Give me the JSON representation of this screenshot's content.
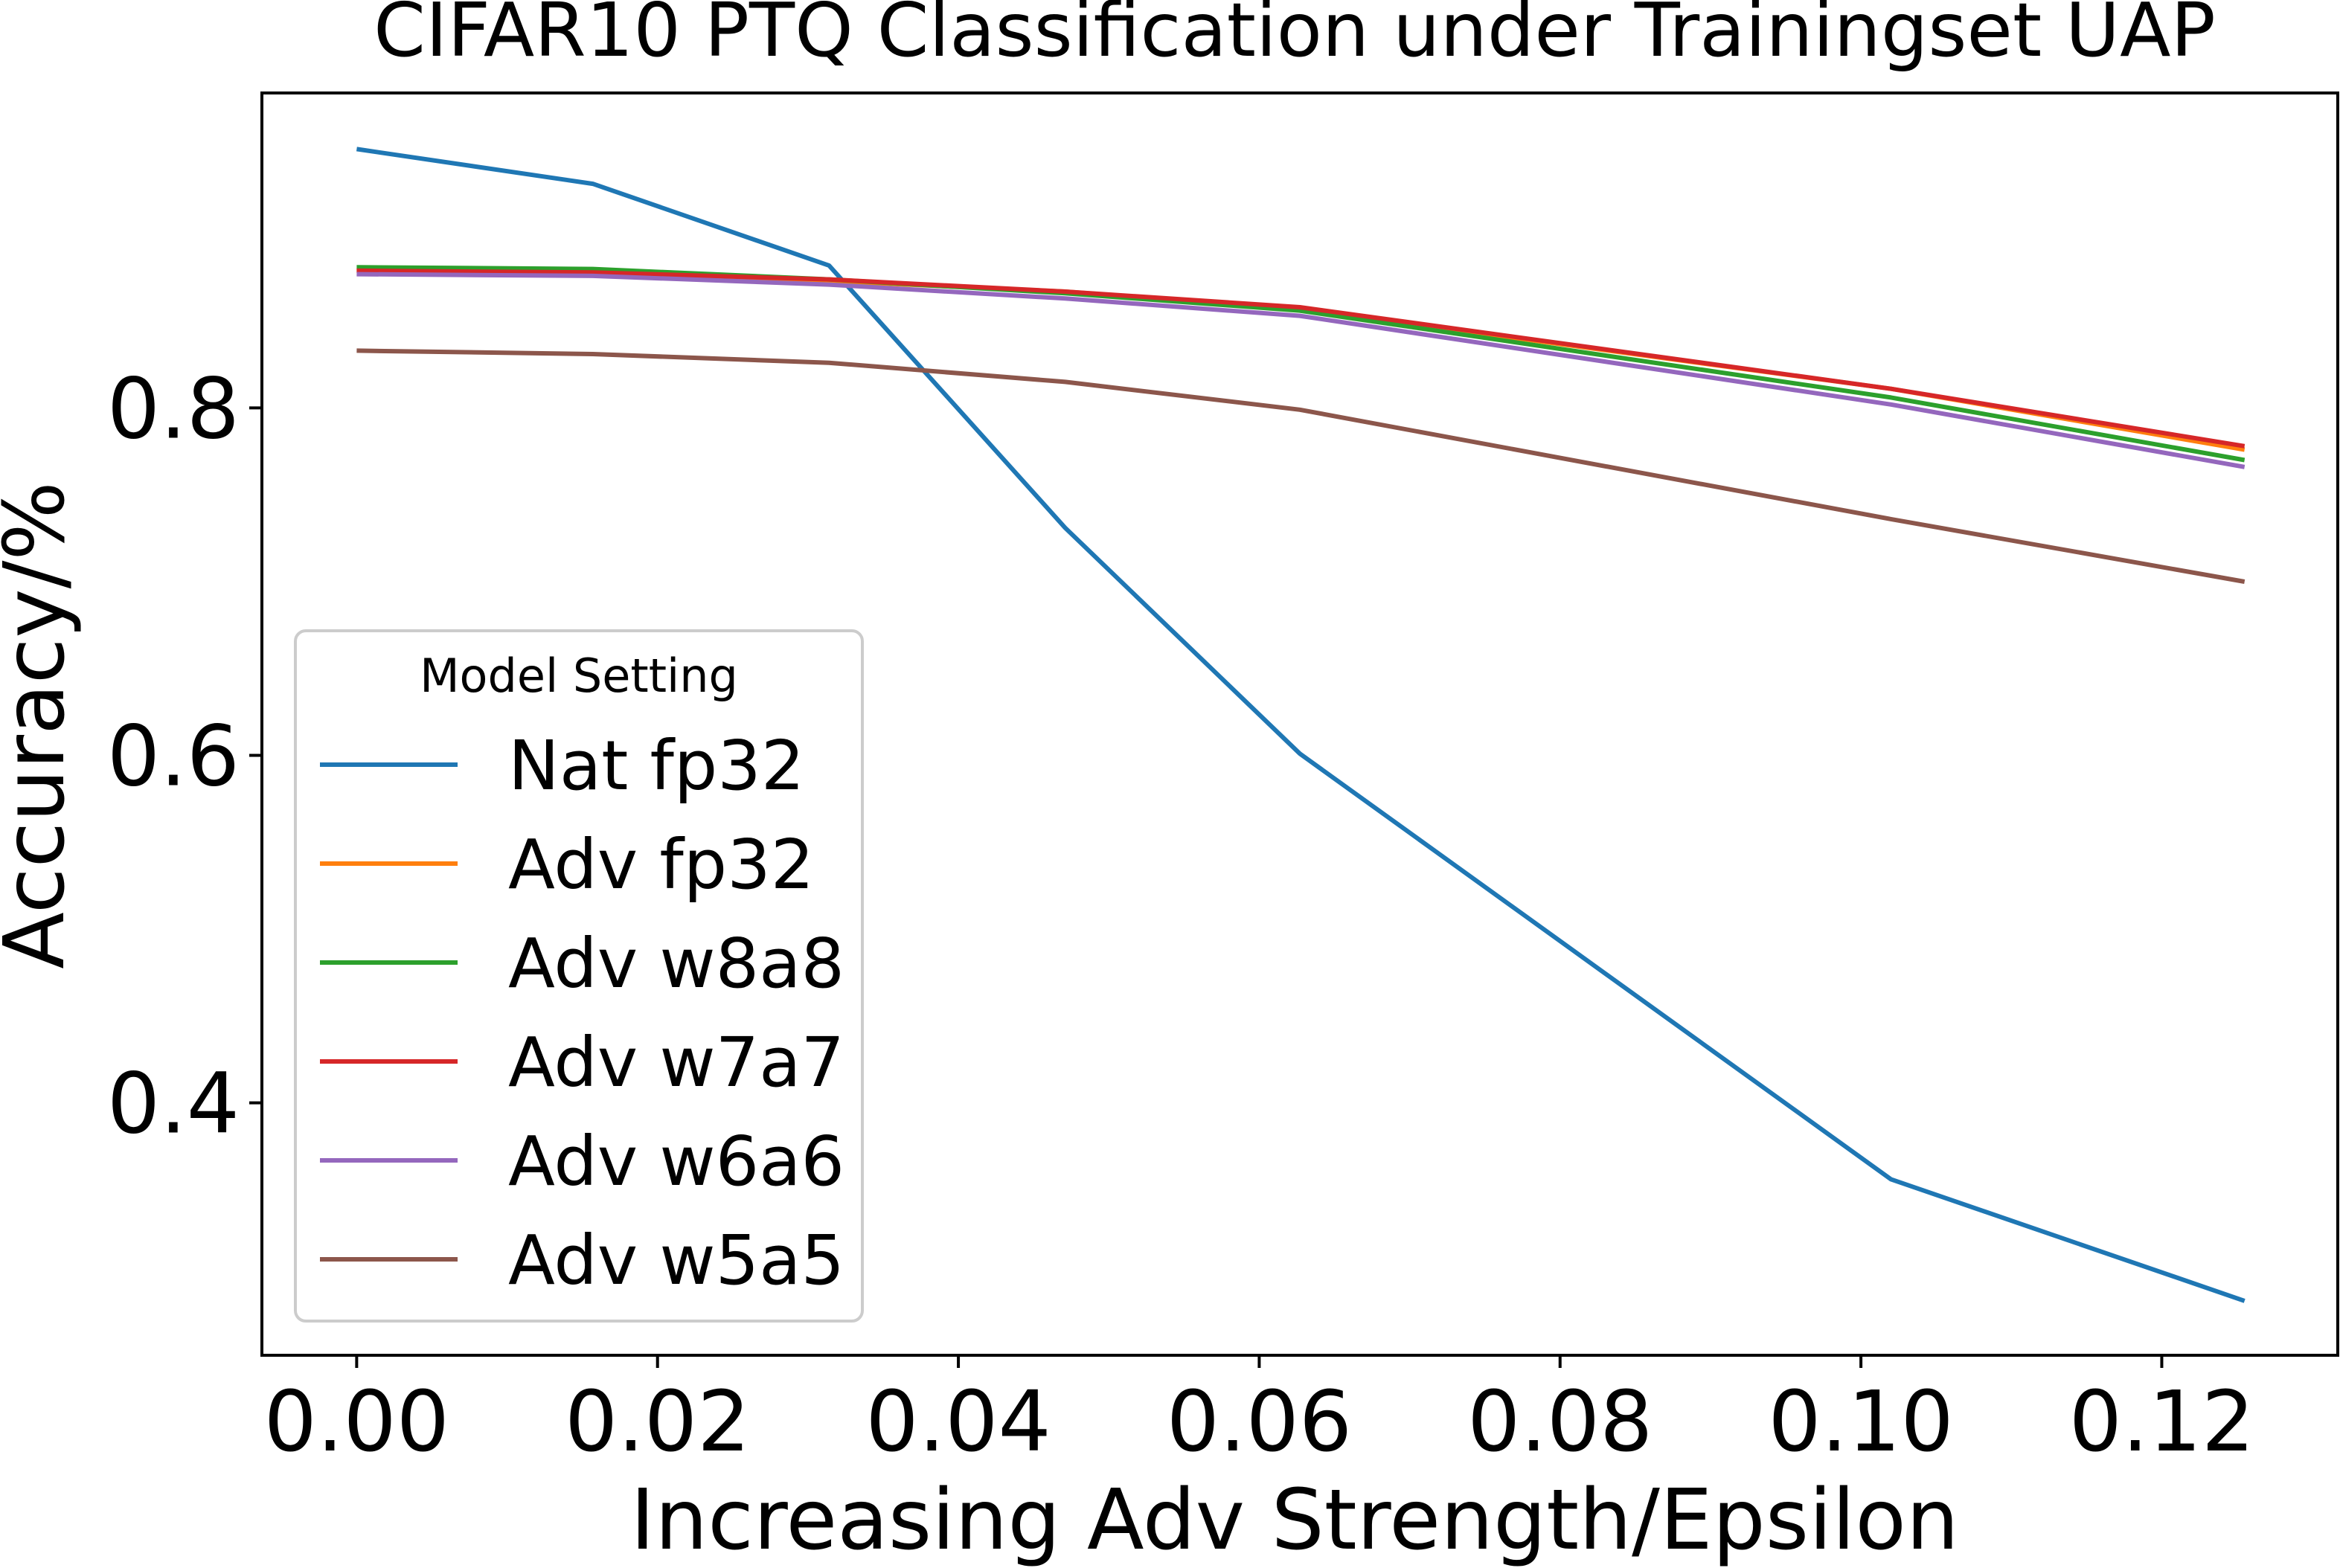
{
  "chart_data": {
    "type": "line",
    "title": "CIFAR10 PTQ Classification under Trainingset UAP",
    "xlabel": "Increasing Adv Strength/Epsilon",
    "ylabel": "Accuracy/%",
    "xlim": [
      -0.0063,
      0.1317
    ],
    "ylim": [
      0.2547,
      0.9813
    ],
    "xticks": [
      0.0,
      0.02,
      0.04,
      0.06,
      0.08,
      0.1,
      0.12
    ],
    "xtick_labels": [
      "0.00",
      "0.02",
      "0.04",
      "0.06",
      "0.08",
      "0.10",
      "0.12"
    ],
    "yticks": [
      0.4,
      0.6,
      0.8
    ],
    "ytick_labels": [
      "0.4",
      "0.6",
      "0.8"
    ],
    "grid": false,
    "legend": {
      "title": "Model Setting",
      "placement": "center-left"
    },
    "x": [
      0.0,
      0.0157,
      0.0314,
      0.0471,
      0.0627,
      0.102,
      0.1255
    ],
    "series": [
      {
        "name": "Nat fp32",
        "color": "#1f77b4",
        "values": [
          0.949,
          0.929,
          0.882,
          0.731,
          0.601,
          0.356,
          0.286
        ]
      },
      {
        "name": "Adv fp32",
        "color": "#ff7f0e",
        "values": [
          0.879,
          0.878,
          0.873,
          0.867,
          0.857,
          0.811,
          0.776
        ]
      },
      {
        "name": "Adv w8a8",
        "color": "#2ca02c",
        "values": [
          0.881,
          0.88,
          0.874,
          0.866,
          0.856,
          0.806,
          0.77
        ]
      },
      {
        "name": "Adv w7a7",
        "color": "#d62728",
        "values": [
          0.879,
          0.878,
          0.874,
          0.867,
          0.858,
          0.811,
          0.778
        ]
      },
      {
        "name": "Adv w6a6",
        "color": "#9467bd",
        "values": [
          0.877,
          0.876,
          0.871,
          0.863,
          0.853,
          0.802,
          0.766
        ]
      },
      {
        "name": "Adv w5a5",
        "color": "#8c564b",
        "values": [
          0.833,
          0.831,
          0.826,
          0.815,
          0.799,
          0.736,
          0.7
        ]
      }
    ]
  }
}
